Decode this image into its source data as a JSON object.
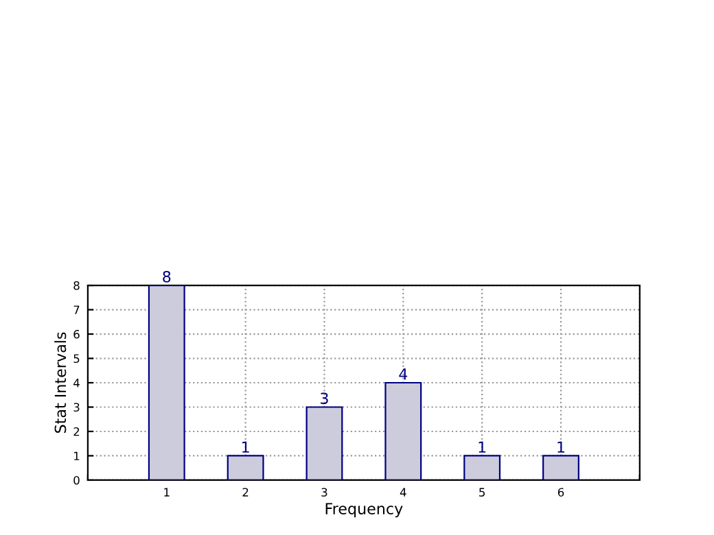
{
  "chart_data": {
    "type": "bar",
    "xlabel": "Frequency",
    "ylabel": "Stat Intervals",
    "x": [
      1,
      2,
      3,
      4,
      5,
      6
    ],
    "series": [
      {
        "color": "#ccccdd",
        "values": [
          8,
          1,
          3,
          4,
          1,
          1
        ]
      }
    ],
    "data_labels": true,
    "xlim": [
      0,
      7
    ],
    "xticks": [
      {
        "value": 0,
        "label": null
      },
      1,
      2,
      3,
      4,
      5,
      6,
      {
        "value": 7,
        "label": null
      }
    ],
    "ylim": [
      0,
      8
    ],
    "yticks": [
      0,
      1,
      2,
      3,
      4,
      5,
      6,
      7,
      8
    ],
    "grid": true,
    "legend": false
  }
}
